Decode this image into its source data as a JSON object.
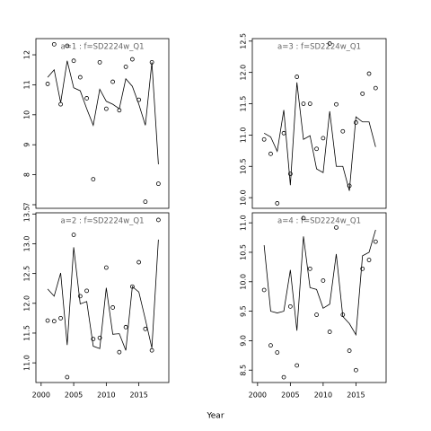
{
  "x_label": "Year",
  "chart_data": [
    {
      "type": "line",
      "title": "a=1  :  f=SD2224w_Q1",
      "x": [
        2001,
        2002,
        2003,
        2004,
        2005,
        2006,
        2007,
        2008,
        2009,
        2010,
        2011,
        2012,
        2013,
        2014,
        2015,
        2016,
        2017,
        2018
      ],
      "xlim": [
        1999.2,
        2019.6
      ],
      "ylim": [
        6.88,
        12.54
      ],
      "yticks": [
        7,
        8,
        9,
        10,
        11,
        12
      ],
      "series": [
        {
          "marker": "circle",
          "color": "#000000",
          "values": [
            11.03,
            12.35,
            10.35,
            12.3,
            11.8,
            11.25,
            10.55,
            7.85,
            11.75,
            10.2,
            11.1,
            10.15,
            11.6,
            11.85,
            10.5,
            7.1,
            11.75,
            7.7
          ]
        },
        {
          "marker": "line",
          "color": "#000000",
          "values": [
            11.25,
            11.5,
            10.4,
            11.8,
            10.9,
            10.8,
            10.2,
            9.65,
            10.85,
            10.45,
            10.35,
            10.2,
            11.2,
            10.95,
            10.35,
            9.65,
            11.75,
            8.35
          ]
        }
      ]
    },
    {
      "type": "line",
      "title": "a=3  :  f=SD2224w_Q1",
      "x": [
        2001,
        2002,
        2003,
        2004,
        2005,
        2006,
        2007,
        2008,
        2009,
        2010,
        2011,
        2012,
        2013,
        2014,
        2015,
        2016,
        2017,
        2018
      ],
      "xlim": [
        1999.2,
        2019.6
      ],
      "ylim": [
        9.83,
        12.54
      ],
      "yticks": [
        {
          "value": 10,
          "label": "10.0"
        },
        10.5,
        {
          "value": 11,
          "label": "11.0"
        },
        11.5,
        {
          "value": 12,
          "label": "12.0"
        },
        12.5
      ],
      "series": [
        {
          "marker": "circle",
          "color": "#000000",
          "values": [
            10.93,
            10.7,
            9.91,
            11.03,
            10.38,
            11.93,
            11.5,
            11.5,
            10.78,
            10.95,
            12.46,
            11.49,
            11.06,
            10.19,
            11.2,
            11.66,
            11.98,
            11.75
          ]
        },
        {
          "marker": "line",
          "color": "#000000",
          "values": [
            11.03,
            10.97,
            10.74,
            11.4,
            10.2,
            11.84,
            10.93,
            10.99,
            10.46,
            10.4,
            11.38,
            10.5,
            10.5,
            10.11,
            11.29,
            11.21,
            11.21,
            10.81
          ]
        }
      ]
    },
    {
      "type": "line",
      "title": "a=2  :  f=SD2224w_Q1",
      "x": [
        2001,
        2002,
        2003,
        2004,
        2005,
        2006,
        2007,
        2008,
        2009,
        2010,
        2011,
        2012,
        2013,
        2014,
        2015,
        2016,
        2017,
        2018
      ],
      "xlim": [
        1999.2,
        2019.6
      ],
      "xticks": [
        2000,
        2005,
        2010,
        2015
      ],
      "ylim": [
        10.67,
        13.52
      ],
      "yticks": [
        {
          "value": 11,
          "label": "11.0"
        },
        11.5,
        {
          "value": 12,
          "label": "12.0"
        },
        12.5,
        {
          "value": 13,
          "label": "13.0"
        },
        13.5
      ],
      "series": [
        {
          "marker": "circle",
          "color": "#000000",
          "values": [
            11.71,
            11.7,
            11.75,
            10.76,
            13.15,
            12.12,
            12.21,
            11.4,
            11.42,
            12.6,
            11.93,
            11.18,
            11.6,
            12.28,
            12.69,
            11.57,
            11.21,
            13.4
          ]
        },
        {
          "marker": "line",
          "color": "#000000",
          "values": [
            12.24,
            12.12,
            12.51,
            11.3,
            12.94,
            11.99,
            12.03,
            11.28,
            11.24,
            12.26,
            11.48,
            11.49,
            11.21,
            12.28,
            12.19,
            11.73,
            11.25,
            13.07
          ]
        }
      ]
    },
    {
      "type": "line",
      "title": "a=4  :  f=SD2224w_Q1",
      "x": [
        2001,
        2002,
        2003,
        2004,
        2005,
        2006,
        2007,
        2008,
        2009,
        2010,
        2011,
        2012,
        2013,
        2014,
        2015,
        2016,
        2017,
        2018
      ],
      "xlim": [
        1999.2,
        2019.6
      ],
      "xticks": [
        2000,
        2005,
        2010,
        2015
      ],
      "ylim": [
        8.29,
        11.17
      ],
      "yticks": [
        8.5,
        {
          "value": 9,
          "label": "9.0"
        },
        9.5,
        {
          "value": 10,
          "label": "10.0"
        },
        10.5,
        {
          "value": 11,
          "label": "11.0"
        }
      ],
      "series": [
        {
          "marker": "circle",
          "color": "#000000",
          "values": [
            9.86,
            8.92,
            8.8,
            8.38,
            9.58,
            8.58,
            11.08,
            10.22,
            9.44,
            10.02,
            9.15,
            10.92,
            9.44,
            8.83,
            8.5,
            10.22,
            10.37,
            10.68
          ]
        },
        {
          "marker": "line",
          "color": "#000000",
          "values": [
            10.62,
            9.5,
            9.47,
            9.5,
            10.2,
            9.17,
            10.77,
            9.9,
            9.87,
            9.55,
            9.62,
            10.47,
            9.41,
            9.29,
            9.1,
            10.44,
            10.5,
            10.88
          ]
        }
      ]
    }
  ]
}
